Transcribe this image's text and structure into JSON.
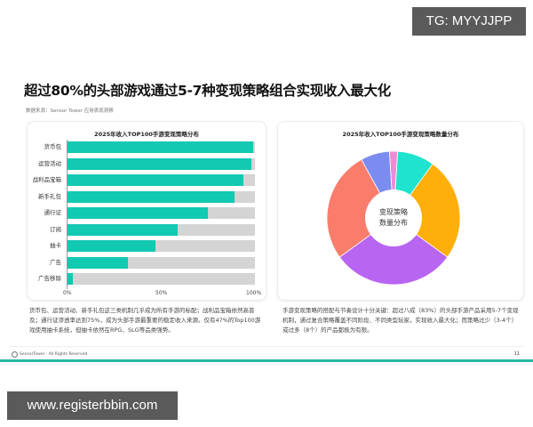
{
  "watermark_top": "TG: MYYJJPP",
  "watermark_bottom": "www.registerbbin.com",
  "page": {
    "title": "超过80%的头部游戏通过5-7种变现策略组合实现收入最大化",
    "source": "数据来源：Sensor Tower 应用表现洞察",
    "footer_text": "SensorTower · All Rights Reserved",
    "page_number": "11"
  },
  "left_card": {
    "title": "2025年收入TOP100手游变现策略分布",
    "ticks": [
      "0%",
      "50%",
      "100%"
    ],
    "description": "货币包、运营活动、新手礼包这三类机制几乎成为所有手游的标配；战利品宝箱依然高普及；通行证渗透率达到75%，成为头部手游最重要的稳定收入来源。仅有47%的Top100游戏使用抽卡系统，但抽卡依然在RPG、SLG等品类强势。"
  },
  "right_card": {
    "title": "2025年收入TOP100手游变现策略数量分布",
    "center_label_1": "变现策略",
    "center_label_2": "数量分布",
    "description": "手游变现策略的搭配与节奏设计十分关键：超过八成（83%）的头部手游产品采用5-7个变现机制，通过复合策略覆盖不同阶段、不同类型玩家，实现收入最大化；而策略过少（3-4个）或过多（8个）的产品都极为有限。"
  },
  "colors": {
    "bar_fill": "#12c9b1",
    "bar_track": "#d4d4d4",
    "accent_line": "#2ab8a7"
  },
  "chart_data": [
    {
      "type": "bar",
      "orientation": "horizontal",
      "title": "2025年收入TOP100手游变现策略分布",
      "categories": [
        "货币包",
        "运营活动",
        "战利品宝箱",
        "新手礼包",
        "通行证",
        "订阅",
        "抽卡",
        "广告",
        "广告移除"
      ],
      "values": [
        99,
        98,
        94,
        89,
        75,
        59,
        47,
        32,
        3
      ],
      "xlabel": "",
      "ylabel": "",
      "xlim": [
        0,
        100
      ],
      "x_ticks": [
        "0%",
        "50%",
        "100%"
      ],
      "grid": false,
      "legend": null
    },
    {
      "type": "pie",
      "donut": true,
      "title": "2025年收入TOP100手游变现策略数量分布",
      "center_label": "变现策略数量分布",
      "slices": [
        {
          "color": "#f08ad6",
          "value": 2
        },
        {
          "color": "#1ee3cf",
          "value": 9
        },
        {
          "color": "#ffae0a",
          "value": 25
        },
        {
          "color": "#b865f2",
          "value": 30
        },
        {
          "color": "#fa7d6c",
          "value": 27
        },
        {
          "color": "#7b8cf0",
          "value": 7
        }
      ],
      "legend": null
    }
  ]
}
